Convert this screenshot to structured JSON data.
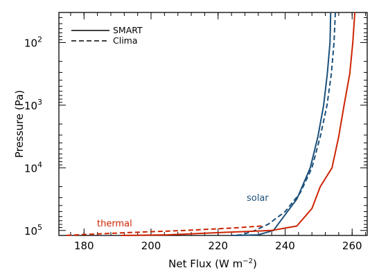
{
  "chart_data": {
    "type": "line",
    "xlabel_main": "Net Flux (W m",
    "xlabel_sup": "−2",
    "xlabel_close": ")",
    "ylabel": "Pressure (Pa)",
    "xlim": [
      172.5,
      264.5
    ],
    "ylim_log10": [
      5.08,
      1.52
    ],
    "yscale": "log",
    "y_inverted": true,
    "x_ticks": [
      180,
      200,
      220,
      240,
      260
    ],
    "x_minor_step": 4,
    "y_ticks": [
      {
        "base": "10",
        "exp": "2",
        "log": 2
      },
      {
        "base": "10",
        "exp": "3",
        "log": 3
      },
      {
        "base": "10",
        "exp": "4",
        "log": 4
      },
      {
        "base": "10",
        "exp": "5",
        "log": 5
      }
    ],
    "legend": {
      "placement": "top-left",
      "entries": [
        {
          "label": "SMART",
          "style": "solid"
        },
        {
          "label": "Clima",
          "style": "dashed"
        }
      ]
    },
    "annotations": [
      {
        "text": "solar",
        "color": "#1a4f7a"
      },
      {
        "text": "thermal",
        "color": "#cc2200"
      }
    ],
    "series": [
      {
        "group": "solar",
        "style": "solid",
        "color": "#1a4f7a",
        "points": [
          [
            253.6,
            1.52
          ],
          [
            253.4,
            2.0
          ],
          [
            252.6,
            2.5
          ],
          [
            251.5,
            3.0
          ],
          [
            249.8,
            3.5
          ],
          [
            247.5,
            4.0
          ],
          [
            243.5,
            4.5
          ],
          [
            239.3,
            4.8
          ],
          [
            236.5,
            5.0
          ],
          [
            232.0,
            5.07
          ],
          [
            225.0,
            5.08
          ]
        ]
      },
      {
        "group": "solar",
        "style": "dashed",
        "color": "#1a4f7a",
        "points": [
          [
            255.0,
            1.52
          ],
          [
            254.6,
            2.0
          ],
          [
            253.8,
            2.5
          ],
          [
            252.5,
            3.0
          ],
          [
            250.5,
            3.5
          ],
          [
            248.0,
            4.0
          ],
          [
            244.5,
            4.4
          ],
          [
            240.0,
            4.7
          ],
          [
            235.0,
            4.9
          ],
          [
            231.0,
            5.0
          ],
          [
            227.0,
            5.07
          ],
          [
            224.0,
            5.08
          ]
        ]
      },
      {
        "group": "thermal",
        "style": "solid",
        "color": "#cc2200",
        "points": [
          [
            260.8,
            1.52
          ],
          [
            260.2,
            2.0
          ],
          [
            259.3,
            2.5
          ],
          [
            257.6,
            3.0
          ],
          [
            256.0,
            3.5
          ],
          [
            254.0,
            4.0
          ],
          [
            250.5,
            4.3
          ],
          [
            248.0,
            4.65
          ],
          [
            243.5,
            4.93
          ],
          [
            236.0,
            5.0
          ],
          [
            222.0,
            5.03
          ],
          [
            205.0,
            5.07
          ],
          [
            191.0,
            5.08
          ]
        ]
      },
      {
        "group": "thermal",
        "style": "dashed",
        "color": "#cc2200",
        "points": [
          [
            233.0,
            4.93
          ],
          [
            225.0,
            4.96
          ],
          [
            210.0,
            5.0
          ],
          [
            195.0,
            5.03
          ],
          [
            182.0,
            5.06
          ],
          [
            174.0,
            5.08
          ]
        ]
      }
    ]
  }
}
